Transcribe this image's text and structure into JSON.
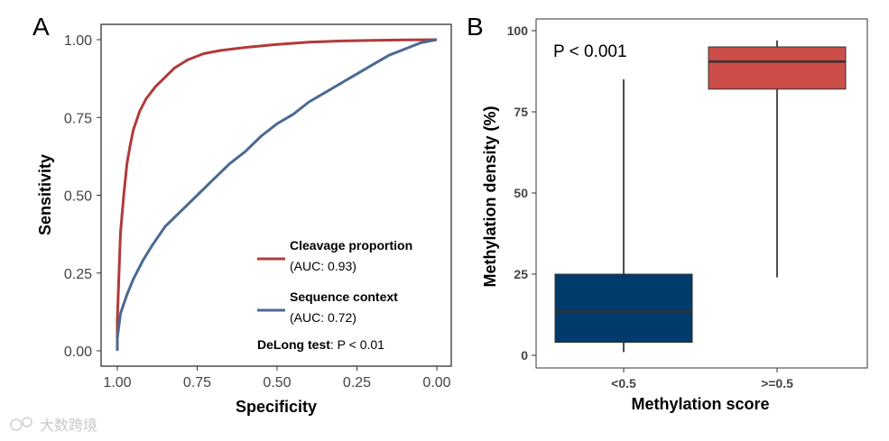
{
  "watermark": "大数跨境",
  "chart_data": [
    {
      "panel": "A",
      "type": "line",
      "title": "",
      "xlabel": "Specificity",
      "ylabel": "Sensitivity",
      "xlim": [
        1.0,
        0.0
      ],
      "ylim": [
        0.0,
        1.0
      ],
      "xticks": [
        "1.00",
        "0.75",
        "0.50",
        "0.25",
        "0.00"
      ],
      "yticks": [
        "0.00",
        "0.25",
        "0.50",
        "0.75",
        "1.00"
      ],
      "series": [
        {
          "name": "Cleavage proportion",
          "auc_label": "(AUC: 0.93)",
          "color": "#b03a3a",
          "specificity": [
            1.0,
            1.0,
            0.99,
            0.98,
            0.97,
            0.96,
            0.95,
            0.93,
            0.91,
            0.88,
            0.85,
            0.82,
            0.78,
            0.73,
            0.68,
            0.6,
            0.5,
            0.4,
            0.3,
            0.2,
            0.1,
            0.0
          ],
          "sensitivity": [
            0.0,
            0.1,
            0.38,
            0.5,
            0.6,
            0.66,
            0.71,
            0.77,
            0.81,
            0.85,
            0.88,
            0.91,
            0.935,
            0.955,
            0.965,
            0.975,
            0.985,
            0.992,
            0.996,
            0.998,
            0.999,
            1.0
          ]
        },
        {
          "name": "Sequence context",
          "auc_label": "(AUC: 0.72)",
          "color": "#4a6a91",
          "specificity": [
            1.0,
            1.0,
            0.99,
            0.97,
            0.95,
            0.92,
            0.89,
            0.85,
            0.8,
            0.75,
            0.7,
            0.65,
            0.6,
            0.55,
            0.5,
            0.45,
            0.4,
            0.35,
            0.3,
            0.25,
            0.2,
            0.15,
            0.1,
            0.05,
            0.0
          ],
          "sensitivity": [
            0.0,
            0.04,
            0.12,
            0.18,
            0.23,
            0.29,
            0.34,
            0.4,
            0.45,
            0.5,
            0.55,
            0.6,
            0.64,
            0.69,
            0.73,
            0.76,
            0.8,
            0.83,
            0.86,
            0.89,
            0.92,
            0.95,
            0.97,
            0.99,
            1.0
          ]
        }
      ],
      "annotation": {
        "bold": "DeLong test",
        "rest": ": P < 0.01"
      },
      "legend_position": "bottom-right"
    },
    {
      "panel": "B",
      "type": "box",
      "title": "",
      "xlabel": "Methylation score",
      "ylabel": "Methylation density (%)",
      "ylim": [
        0,
        100
      ],
      "yticks": [
        "0",
        "25",
        "50",
        "75",
        "100"
      ],
      "categories": [
        "<0.5",
        ">=0.5"
      ],
      "boxes": [
        {
          "label": "<0.5",
          "min": 1,
          "q1": 4,
          "median": 13.5,
          "q3": 25,
          "max": 85,
          "color": "#003b6b"
        },
        {
          "label": ">=0.5",
          "min": 24,
          "q1": 82,
          "median": 90.5,
          "q3": 95,
          "max": 97,
          "color": "#cd4d48"
        }
      ],
      "annotation": "P < 0.001"
    }
  ]
}
